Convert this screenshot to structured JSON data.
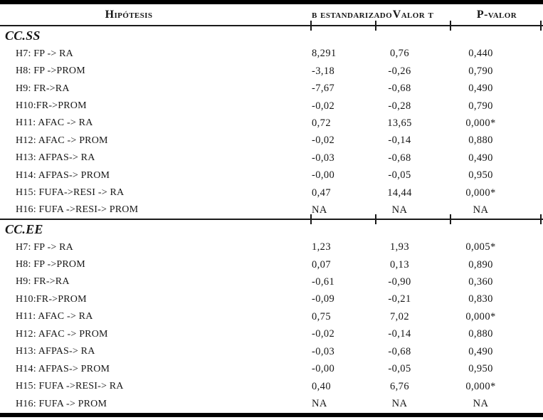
{
  "header": {
    "columns": [
      {
        "label": "Hipótesis"
      },
      {
        "label": "b estandarizado"
      },
      {
        "label": "Valor t"
      },
      {
        "label": "P-valor"
      }
    ]
  },
  "sections": [
    {
      "label": "CC.SS",
      "rows": [
        {
          "hypothesis": "H7: FP -> RA",
          "b": "8,291",
          "t": "0,76",
          "p": "0,440"
        },
        {
          "hypothesis": "H8: FP ->PROM",
          "b": "-3,18",
          "t": "-0,26",
          "p": "0,790"
        },
        {
          "hypothesis": "H9: FR->RA",
          "b": "-7,67",
          "t": "-0,68",
          "p": "0,490"
        },
        {
          "hypothesis": "H10:FR->PROM",
          "b": "-0,02",
          "t": "-0,28",
          "p": "0,790"
        },
        {
          "hypothesis": "H11: AFAC -> RA",
          "b": "0,72",
          "t": "13,65",
          "p": "0,000*"
        },
        {
          "hypothesis": "H12: AFAC -> PROM",
          "b": "-0,02",
          "t": "-0,14",
          "p": "0,880"
        },
        {
          "hypothesis": "H13: AFPAS-> RA",
          "b": "-0,03",
          "t": "-0,68",
          "p": "0,490"
        },
        {
          "hypothesis": "H14: AFPAS-> PROM",
          "b": "-0,00",
          "t": "-0,05",
          "p": "0,950"
        },
        {
          "hypothesis": "H15: FUFA->RESI -> RA",
          "b": "0,47",
          "t": "14,44",
          "p": "0,000*"
        },
        {
          "hypothesis": "H16: FUFA ->RESI-> PROM",
          "b": "NA",
          "t": "NA",
          "p": "NA"
        }
      ]
    },
    {
      "label": "CC.EE",
      "rows": [
        {
          "hypothesis": "H7: FP -> RA",
          "b": "1,23",
          "t": "1,93",
          "p": "0,005*"
        },
        {
          "hypothesis": "H8: FP ->PROM",
          "b": "0,07",
          "t": "0,13",
          "p": "0,890"
        },
        {
          "hypothesis": "H9: FR->RA",
          "b": "-0,61",
          "t": "-0,90",
          "p": "0,360"
        },
        {
          "hypothesis": "H10:FR->PROM",
          "b": "-0,09",
          "t": "-0,21",
          "p": "0,830"
        },
        {
          "hypothesis": "H11: AFAC -> RA",
          "b": "0,75",
          "t": "7,02",
          "p": "0,000*"
        },
        {
          "hypothesis": "H12: AFAC -> PROM",
          "b": "-0,02",
          "t": "-0,14",
          "p": "0,880"
        },
        {
          "hypothesis": "H13: AFPAS-> RA",
          "b": "-0,03",
          "t": "-0,68",
          "p": "0,490"
        },
        {
          "hypothesis": "H14: AFPAS-> PROM",
          "b": "-0,00",
          "t": "-0,05",
          "p": "0,950"
        },
        {
          "hypothesis": "H15: FUFA ->RESI-> RA",
          "b": "0,40",
          "t": "6,76",
          "p": "0,000*"
        },
        {
          "hypothesis": "H16: FUFA -> PROM",
          "b": "NA",
          "t": "NA",
          "p": "NA"
        }
      ]
    }
  ]
}
